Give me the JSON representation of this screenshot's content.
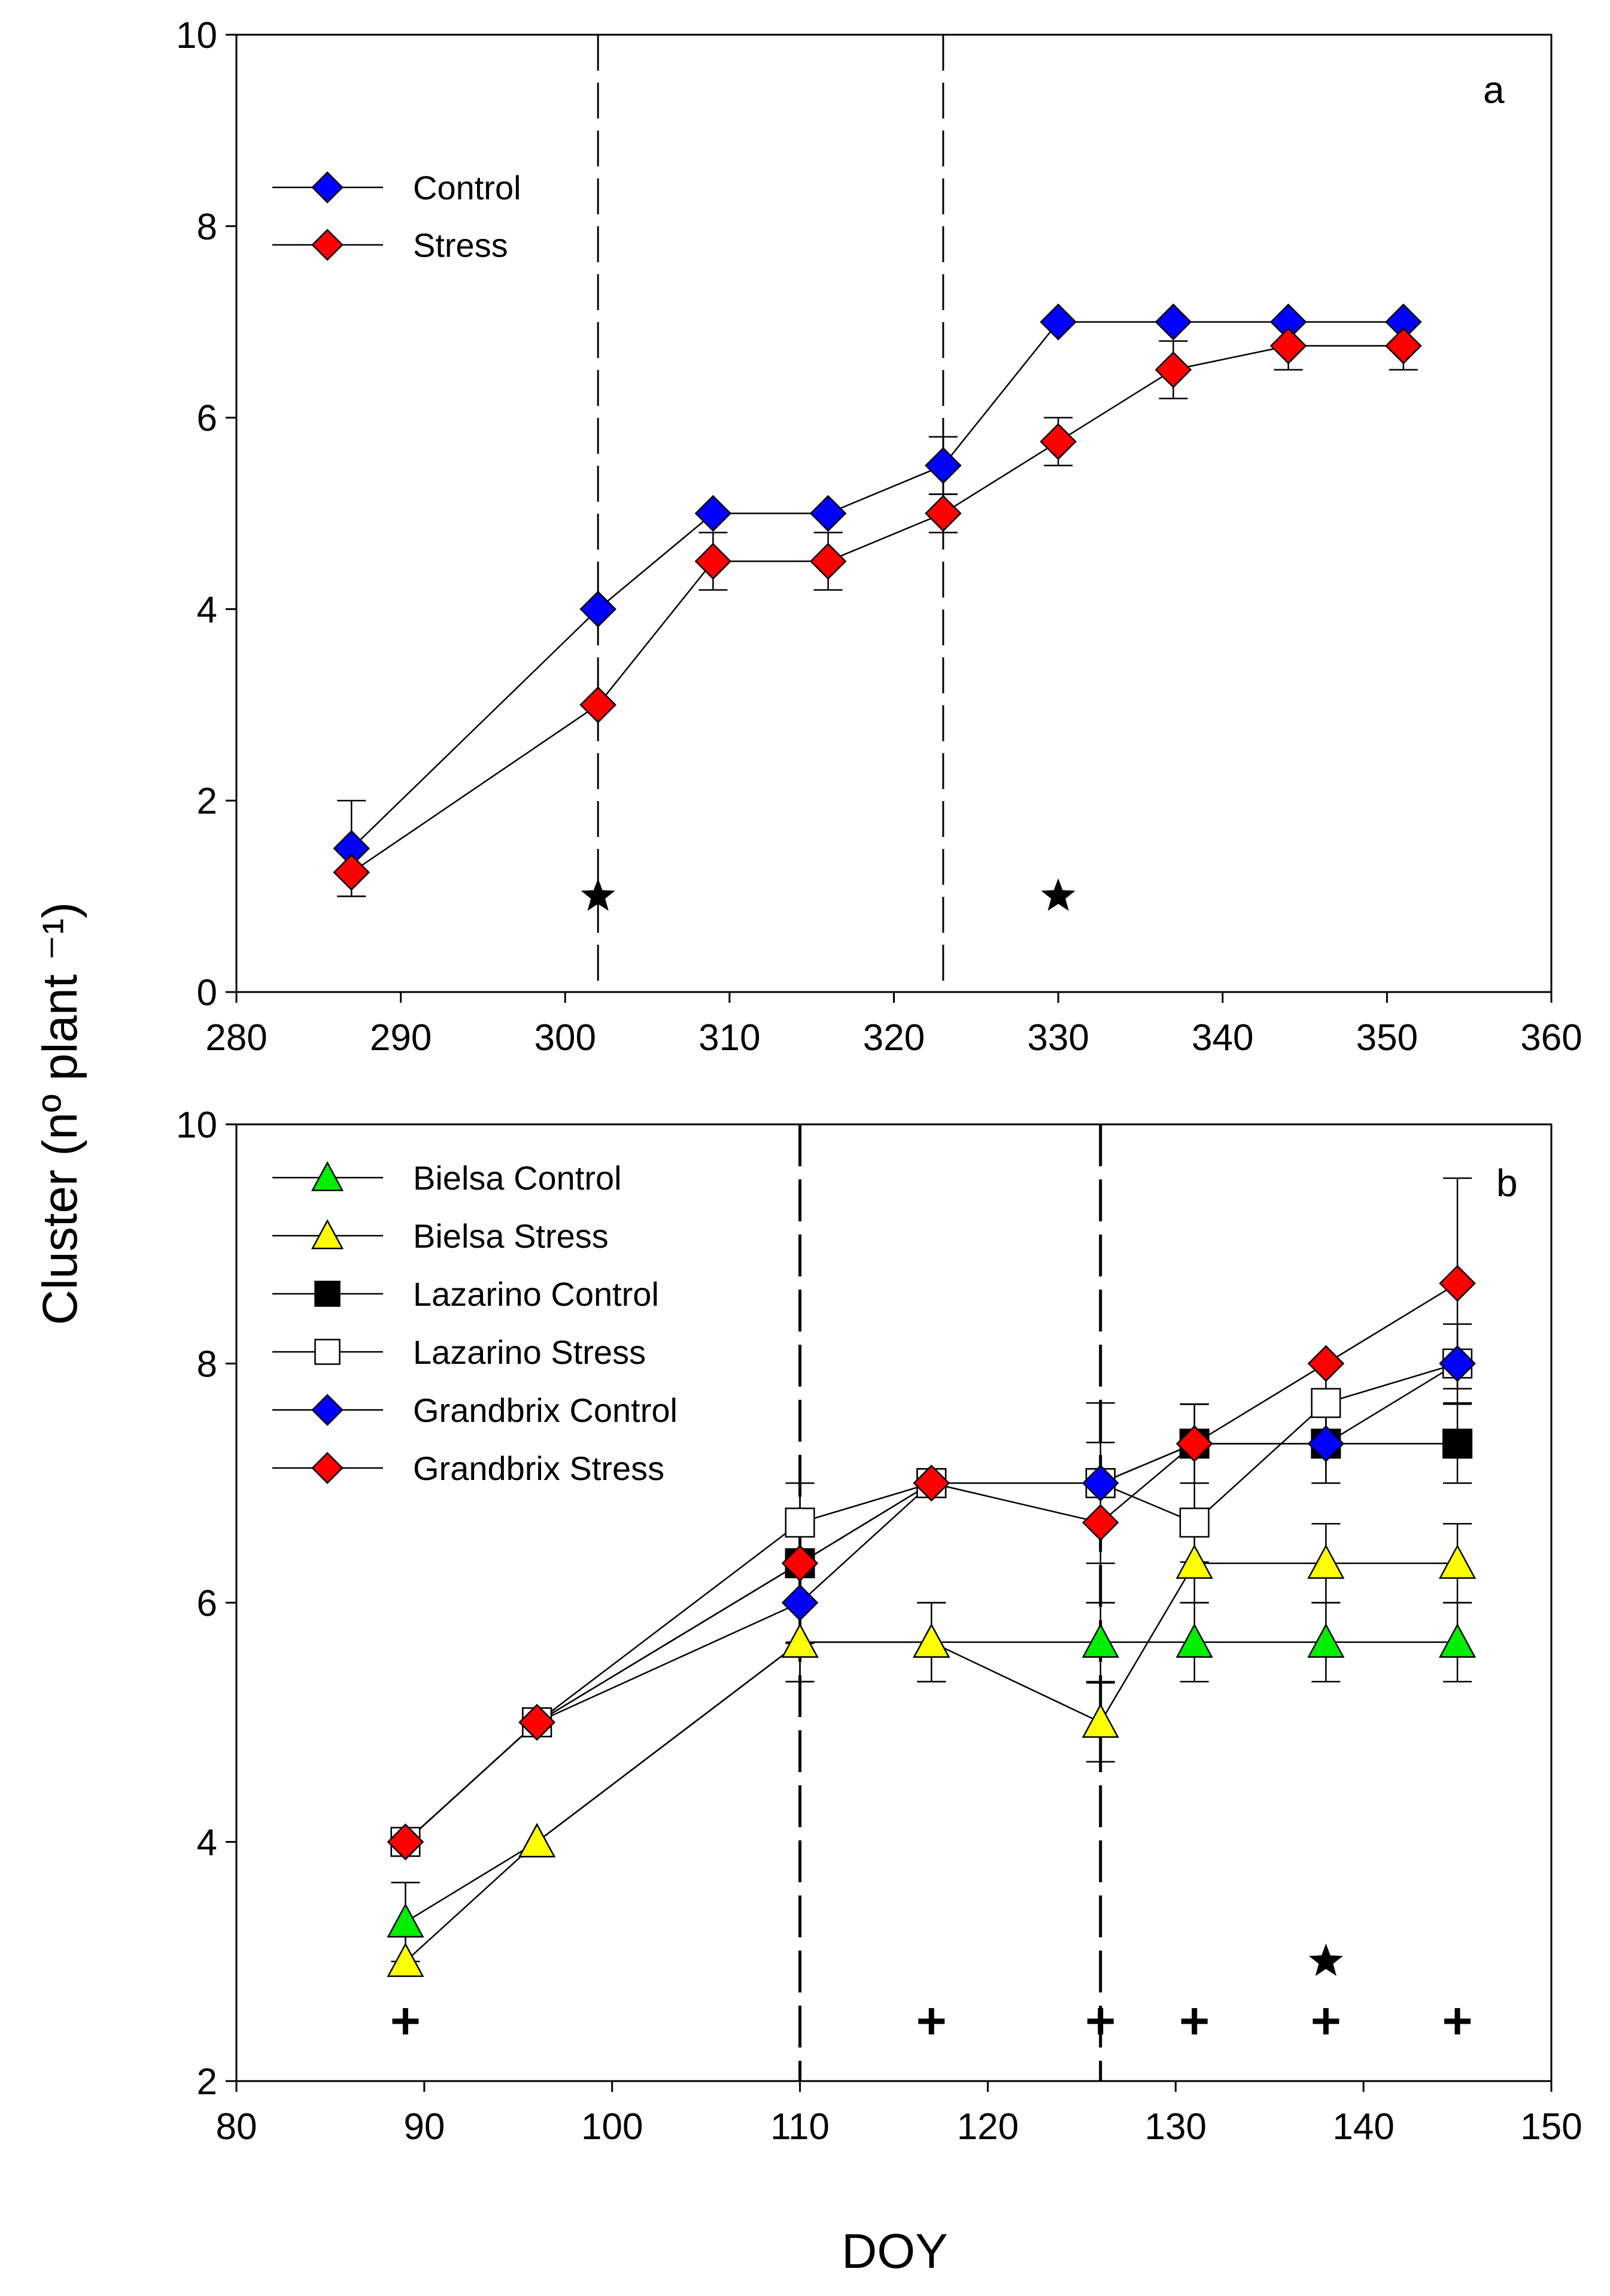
{
  "axis_title_y": "Cluster (nº plant ⁻¹)",
  "axis_title_x": "DOY",
  "chart_data": [
    {
      "type": "line",
      "panel": "a",
      "xlim": [
        280,
        360
      ],
      "ylim": [
        0,
        10
      ],
      "x_ticks": [
        280,
        290,
        300,
        310,
        320,
        330,
        340,
        350,
        360
      ],
      "y_ticks": [
        0,
        2,
        4,
        6,
        8,
        10
      ],
      "legend_position": "top-left",
      "vlines": [
        302,
        323
      ],
      "markers_star": [
        [
          302,
          1
        ],
        [
          330,
          1
        ]
      ],
      "markers_plus": [],
      "series": [
        {
          "name": "Control",
          "marker": "diamond",
          "color": "#0000ff",
          "x": [
            287,
            302,
            309,
            316,
            323,
            330,
            337,
            344,
            351
          ],
          "y": [
            1.5,
            4.0,
            5.0,
            5.0,
            5.5,
            7.0,
            7.0,
            7.0,
            7.0
          ],
          "err": [
            0.5,
            0,
            0,
            0,
            0.3,
            0,
            0,
            0,
            0
          ]
        },
        {
          "name": "Stress",
          "marker": "diamond",
          "color": "#ff0000",
          "x": [
            287,
            302,
            309,
            316,
            323,
            330,
            337,
            344,
            351
          ],
          "y": [
            1.25,
            3.0,
            4.5,
            4.5,
            5.0,
            5.75,
            6.5,
            6.75,
            6.75
          ],
          "err": [
            0.25,
            0,
            0.3,
            0.3,
            0.2,
            0.25,
            0.3,
            0.25,
            0.25
          ]
        }
      ]
    },
    {
      "type": "line",
      "panel": "b",
      "xlim": [
        80,
        150
      ],
      "ylim": [
        2,
        10
      ],
      "x_ticks": [
        80,
        90,
        100,
        110,
        120,
        130,
        140,
        150
      ],
      "y_ticks": [
        2,
        4,
        6,
        8,
        10
      ],
      "legend_position": "top-left",
      "vlines": [
        110,
        126
      ],
      "markers_star": [
        [
          138,
          3
        ]
      ],
      "markers_plus": [
        [
          89,
          2.5
        ],
        [
          117,
          2.5
        ],
        [
          126,
          2.5
        ],
        [
          131,
          2.5
        ],
        [
          138,
          2.5
        ],
        [
          145,
          2.5
        ]
      ],
      "series": [
        {
          "name": "Bielsa Control",
          "marker": "triangle",
          "color": "#00ee00",
          "x": [
            89,
            96,
            110,
            117,
            126,
            131,
            138,
            145
          ],
          "y": [
            3.33,
            4.0,
            5.67,
            5.67,
            5.67,
            5.67,
            5.67,
            5.67
          ],
          "err": [
            0.33,
            0,
            0.33,
            0.33,
            0.33,
            0.33,
            0.33,
            0.33
          ]
        },
        {
          "name": "Bielsa Stress",
          "marker": "triangle-open-yellow",
          "color": "#ffff00",
          "x": [
            89,
            96,
            110,
            117,
            126,
            131,
            138,
            145
          ],
          "y": [
            3.0,
            4.0,
            5.67,
            5.67,
            5.0,
            6.33,
            6.33,
            6.33
          ],
          "err": [
            0,
            0,
            0.33,
            0.33,
            0.33,
            0.33,
            0.33,
            0.33
          ]
        },
        {
          "name": "Lazarino Control",
          "marker": "square",
          "color": "#000000",
          "x": [
            89,
            96,
            110,
            117,
            126,
            131,
            138,
            145
          ],
          "y": [
            4.0,
            5.0,
            6.33,
            7.0,
            7.0,
            7.33,
            7.33,
            7.33
          ],
          "err": [
            0,
            0,
            0.33,
            0,
            0,
            0.33,
            0.33,
            0.33
          ]
        },
        {
          "name": "Lazarino Stress",
          "marker": "square-open",
          "color": "#ffffff",
          "x": [
            89,
            96,
            110,
            117,
            126,
            131,
            138,
            145
          ],
          "y": [
            4.0,
            5.0,
            6.67,
            7.0,
            7.0,
            6.67,
            7.67,
            8.0
          ],
          "err": [
            0,
            0,
            0.33,
            0,
            0,
            0.33,
            0.33,
            0
          ]
        },
        {
          "name": "Grandbrix Control",
          "marker": "diamond",
          "color": "#0000ff",
          "x": [
            89,
            96,
            110,
            117,
            126,
            131,
            138,
            145
          ],
          "y": [
            4.0,
            5.0,
            6.0,
            7.0,
            7.0,
            7.33,
            7.33,
            8.0
          ],
          "err": [
            0,
            0,
            0.33,
            0,
            0.67,
            0.33,
            0.33,
            0.33
          ]
        },
        {
          "name": "Grandbrix Stress",
          "marker": "diamond",
          "color": "#ff0000",
          "x": [
            89,
            96,
            110,
            117,
            126,
            131,
            138,
            145
          ],
          "y": [
            4.0,
            5.0,
            6.33,
            7.0,
            6.67,
            7.33,
            8.0,
            8.67
          ],
          "err": [
            0,
            0,
            0.67,
            0,
            0.67,
            0.33,
            0,
            0.88
          ]
        }
      ]
    }
  ]
}
